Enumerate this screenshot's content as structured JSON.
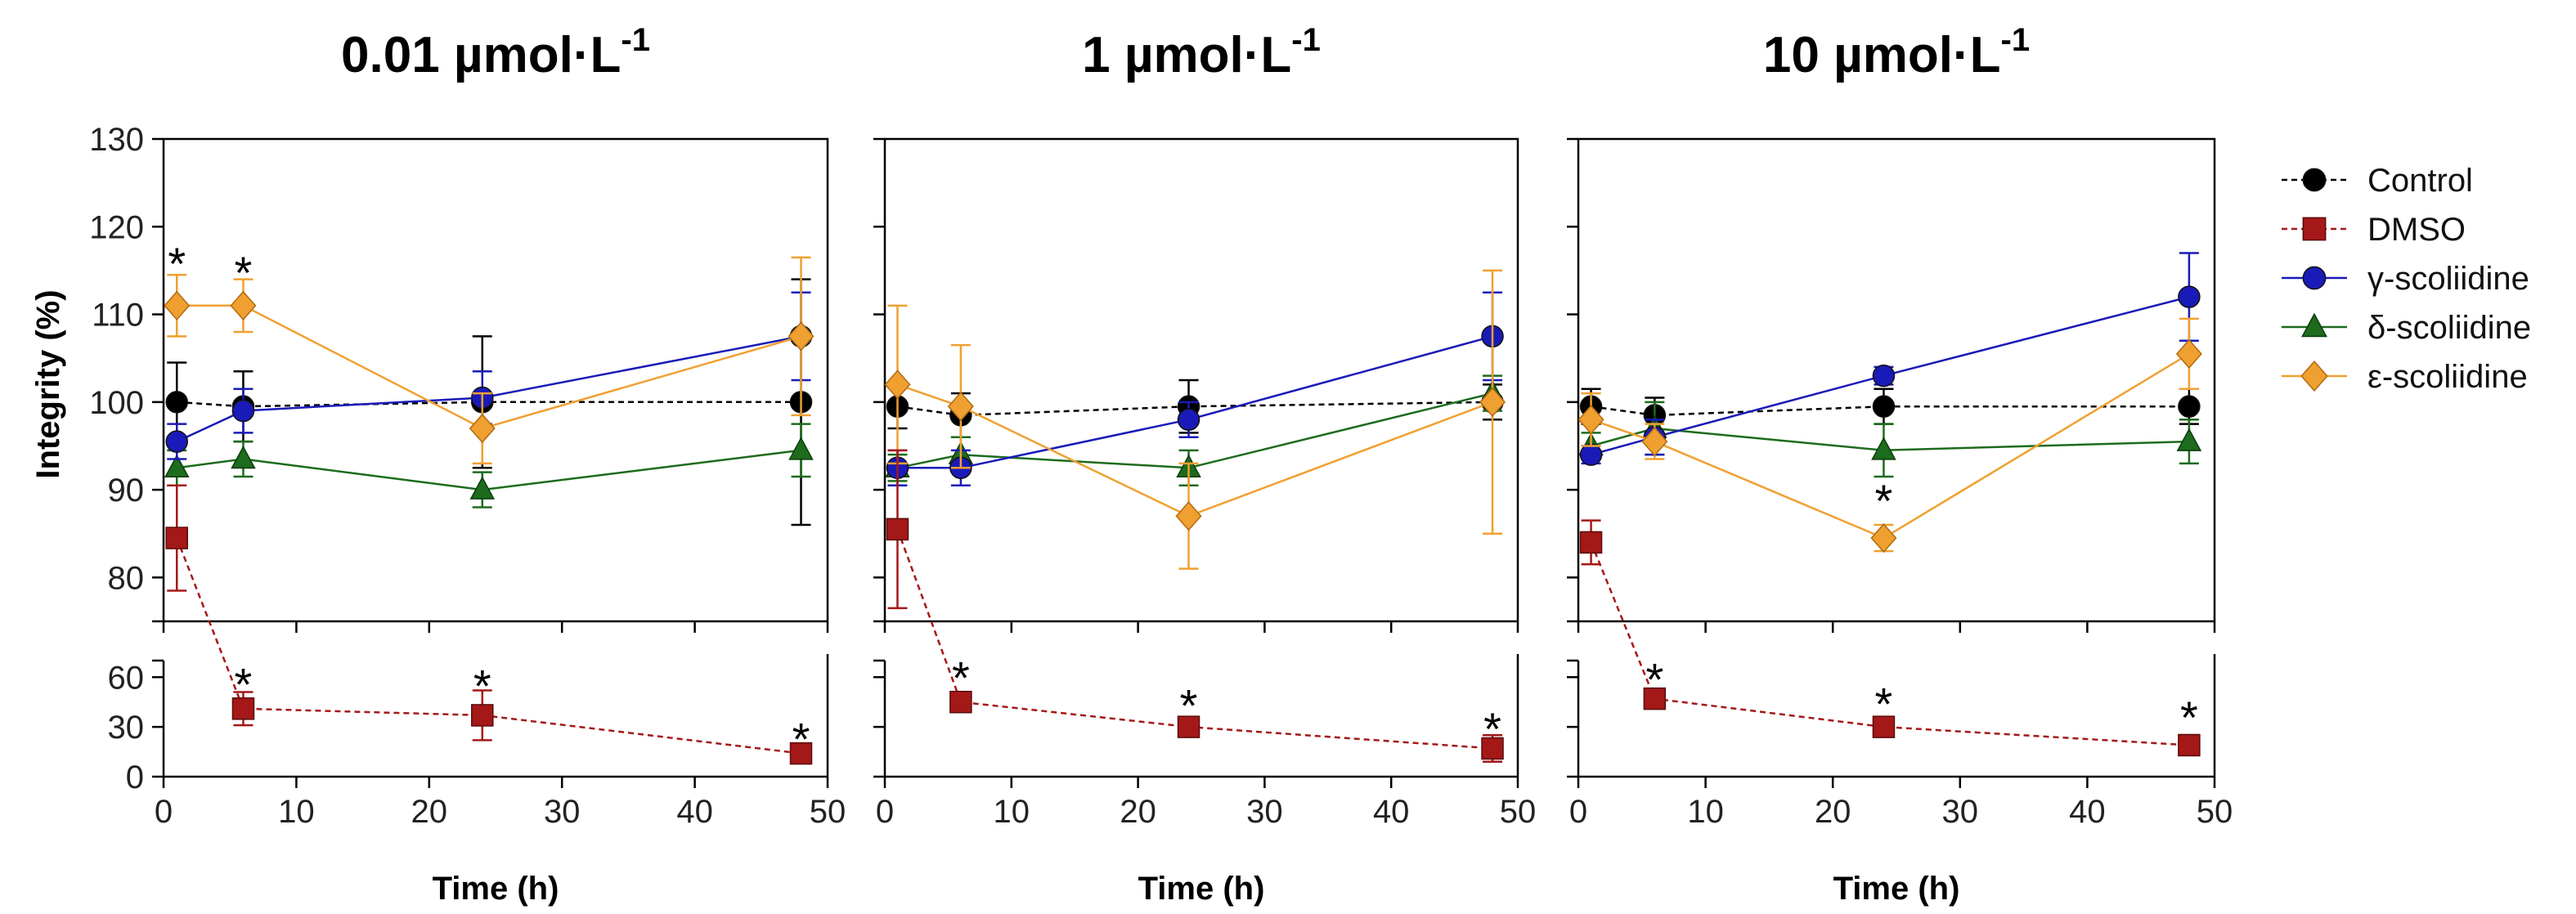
{
  "chart_data": {
    "type": "line",
    "xlabel": "Time (h)",
    "ylabel": "Integrity (%)",
    "x_ticks": [
      0,
      10,
      20,
      30,
      40,
      50
    ],
    "upper_axis": {
      "ylim": [
        75,
        130
      ],
      "ticks": [
        80,
        90,
        100,
        110,
        120,
        130
      ]
    },
    "lower_axis": {
      "ylim": [
        0,
        70
      ],
      "ticks": [
        0,
        30,
        60
      ]
    },
    "legend": {
      "placement": "right",
      "entries": [
        "Control",
        "DMSO",
        "γ-scoliidine",
        "δ-scoliidine",
        "ε-scoliidine"
      ]
    },
    "styles": {
      "Control": {
        "color": "#000000",
        "marker": "circle",
        "dashed": true
      },
      "DMSO": {
        "color": "#a51818",
        "marker": "square",
        "dashed": true
      },
      "γ-scoliidine": {
        "color": "#1a1ab8",
        "marker": "circle",
        "dashed": false
      },
      "δ-scoliidine": {
        "color": "#1d6b1d",
        "marker": "triangle",
        "dashed": false
      },
      "ε-scoliidine": {
        "color": "#f0a030",
        "marker": "diamond",
        "dashed": false
      }
    },
    "panels": [
      {
        "title": "0.01 µmol·L",
        "title_sup": "-1",
        "series": [
          {
            "name": "Control",
            "points": [
              [
                1,
                100,
                4.5
              ],
              [
                6,
                99.5,
                4
              ],
              [
                24,
                100,
                7.5
              ],
              [
                48,
                100,
                14
              ]
            ]
          },
          {
            "name": "DMSO",
            "points": [
              [
                1,
                84.5,
                6
              ],
              [
                6,
                41,
                10
              ],
              [
                24,
                37,
                15
              ],
              [
                48,
                14,
                4
              ]
            ]
          },
          {
            "name": "γ-scoliidine",
            "points": [
              [
                1,
                95.5,
                2
              ],
              [
                6,
                99,
                2.5
              ],
              [
                24,
                100.5,
                3
              ],
              [
                48,
                107.5,
                5
              ]
            ]
          },
          {
            "name": "δ-scoliidine",
            "points": [
              [
                1,
                92.5,
                2
              ],
              [
                6,
                93.5,
                2
              ],
              [
                24,
                90,
                2
              ],
              [
                48,
                94.5,
                3
              ]
            ]
          },
          {
            "name": "ε-scoliidine",
            "points": [
              [
                1,
                111,
                3.5
              ],
              [
                6,
                111,
                3
              ],
              [
                24,
                97,
                4
              ],
              [
                48,
                107.5,
                9
              ]
            ]
          }
        ],
        "asterisks": [
          {
            "x": 1,
            "axis": "upper",
            "y": 116
          },
          {
            "x": 6,
            "axis": "upper",
            "y": 115
          },
          {
            "x": 6,
            "axis": "lower",
            "y": 57
          },
          {
            "x": 24,
            "axis": "lower",
            "y": 56
          },
          {
            "x": 48,
            "axis": "lower",
            "y": 24
          }
        ]
      },
      {
        "title": "1 µmol·L",
        "title_sup": "-1",
        "series": [
          {
            "name": "Control",
            "points": [
              [
                1,
                99.5,
                2.5
              ],
              [
                6,
                98.5,
                2.5
              ],
              [
                24,
                99.5,
                3
              ],
              [
                48,
                100,
                2
              ]
            ]
          },
          {
            "name": "DMSO",
            "points": [
              [
                1,
                85.5,
                9
              ],
              [
                6,
                45,
                5
              ],
              [
                24,
                30,
                5
              ],
              [
                48,
                17,
                8
              ]
            ]
          },
          {
            "name": "γ-scoliidine",
            "points": [
              [
                1,
                92.5,
                2
              ],
              [
                6,
                92.5,
                2
              ],
              [
                24,
                98,
                2
              ],
              [
                48,
                107.5,
                5
              ]
            ]
          },
          {
            "name": "δ-scoliidine",
            "points": [
              [
                1,
                92.5,
                1.5
              ],
              [
                6,
                94,
                2
              ],
              [
                24,
                92.5,
                2
              ],
              [
                48,
                101,
                2
              ]
            ]
          },
          {
            "name": "ε-scoliidine",
            "points": [
              [
                1,
                102,
                9
              ],
              [
                6,
                99.5,
                7
              ],
              [
                24,
                87,
                6
              ],
              [
                48,
                100,
                15
              ]
            ]
          }
        ],
        "asterisks": [
          {
            "x": 6,
            "axis": "lower",
            "y": 61
          },
          {
            "x": 24,
            "axis": "lower",
            "y": 44
          },
          {
            "x": 48,
            "axis": "lower",
            "y": 30
          }
        ]
      },
      {
        "title": "10 µmol·L",
        "title_sup": "-1",
        "series": [
          {
            "name": "Control",
            "points": [
              [
                1,
                99.5,
                2
              ],
              [
                6,
                98.5,
                2
              ],
              [
                24,
                99.5,
                2
              ],
              [
                48,
                99.5,
                2
              ]
            ]
          },
          {
            "name": "DMSO",
            "points": [
              [
                1,
                84,
                2.5
              ],
              [
                6,
                47,
                4
              ],
              [
                24,
                30,
                3
              ],
              [
                48,
                19,
                3
              ]
            ]
          },
          {
            "name": "γ-scoliidine",
            "points": [
              [
                1,
                94,
                1
              ],
              [
                6,
                96,
                2
              ],
              [
                24,
                103,
                1
              ],
              [
                48,
                112,
                5
              ]
            ]
          },
          {
            "name": "δ-scoliidine",
            "points": [
              [
                1,
                95,
                1.5
              ],
              [
                6,
                97,
                3
              ],
              [
                24,
                94.5,
                3
              ],
              [
                48,
                95.5,
                2.5
              ]
            ]
          },
          {
            "name": "ε-scoliidine",
            "points": [
              [
                1,
                98,
                3
              ],
              [
                6,
                95.5,
                2
              ],
              [
                24,
                84.5,
                1.5
              ],
              [
                48,
                105.5,
                4
              ]
            ]
          }
        ],
        "asterisks": [
          {
            "x": 24,
            "axis": "upper",
            "y": 89
          },
          {
            "x": 6,
            "axis": "lower",
            "y": 60
          },
          {
            "x": 24,
            "axis": "lower",
            "y": 45
          },
          {
            "x": 48,
            "axis": "lower",
            "y": 37
          }
        ]
      }
    ]
  }
}
